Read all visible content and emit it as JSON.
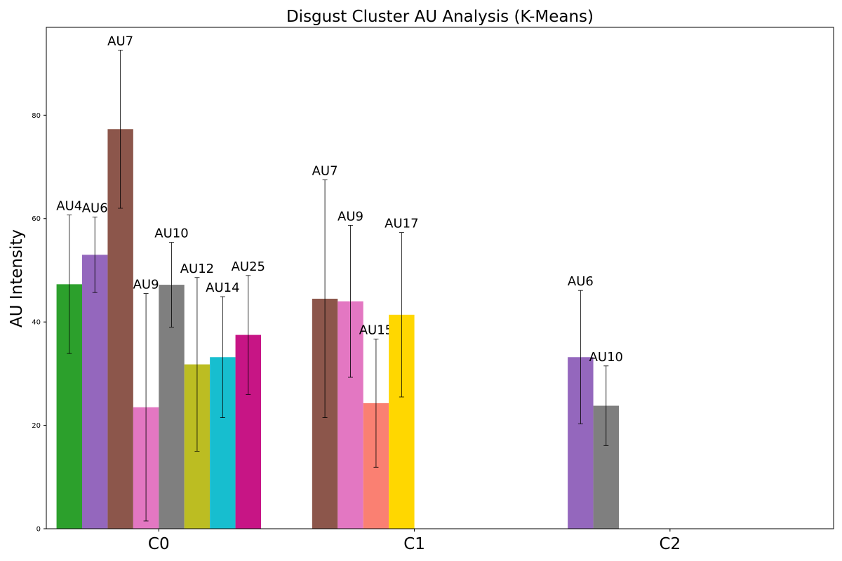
{
  "chart_data": {
    "type": "bar",
    "title": "Disgust Cluster AU Analysis (K-Means)",
    "xlabel": "",
    "ylabel": "AU Intensity",
    "ylim": [
      0,
      97
    ],
    "yticks": [
      0,
      20,
      40,
      60,
      80
    ],
    "grid": false,
    "categories": [
      "C0",
      "C1",
      "C2"
    ],
    "colors": {
      "AU4": "#2ca02c",
      "AU6": "#9467bd",
      "AU7": "#8c564b",
      "AU9": "#e377c2",
      "AU10": "#7f7f7f",
      "AU12": "#bcbd22",
      "AU14": "#17becf",
      "AU15": "#fa8072",
      "AU17": "#ffd700",
      "AU25": "#c71585"
    },
    "clusters": [
      {
        "name": "C0",
        "bars": [
          {
            "au": "AU4",
            "value": 47.3,
            "err": 13.4
          },
          {
            "au": "AU6",
            "value": 53.0,
            "err": 7.3
          },
          {
            "au": "AU7",
            "value": 77.3,
            "err": 15.3
          },
          {
            "au": "AU9",
            "value": 23.5,
            "err": 22.0
          },
          {
            "au": "AU10",
            "value": 47.2,
            "err": 8.2
          },
          {
            "au": "AU12",
            "value": 31.8,
            "err": 16.8
          },
          {
            "au": "AU14",
            "value": 33.2,
            "err": 11.7
          },
          {
            "au": "AU25",
            "value": 37.5,
            "err": 11.5
          }
        ]
      },
      {
        "name": "C1",
        "bars": [
          {
            "au": "AU7",
            "value": 44.5,
            "err": 23.0
          },
          {
            "au": "AU9",
            "value": 44.0,
            "err": 14.7
          },
          {
            "au": "AU15",
            "value": 24.3,
            "err": 12.4
          },
          {
            "au": "AU17",
            "value": 41.4,
            "err": 15.9
          }
        ]
      },
      {
        "name": "C2",
        "bars": [
          {
            "au": "AU6",
            "value": 33.2,
            "err": 12.9
          },
          {
            "au": "AU10",
            "value": 23.8,
            "err": 7.7
          }
        ]
      }
    ]
  }
}
